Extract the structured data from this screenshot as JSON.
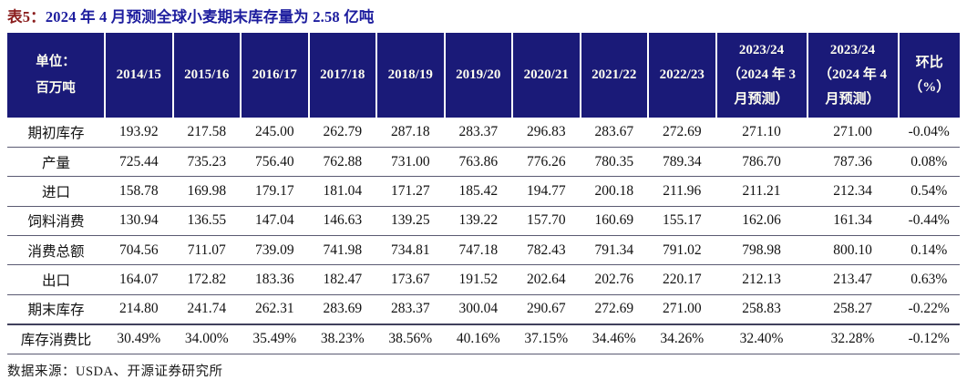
{
  "title": {
    "prefix": "表5：",
    "text": "2024 年 4 月预测全球小麦期末库存量为 2.58 亿吨"
  },
  "table": {
    "unit_label": "单位：\n百万吨",
    "columns": [
      "2014/15",
      "2015/16",
      "2016/17",
      "2017/18",
      "2018/19",
      "2019/20",
      "2020/21",
      "2021/22",
      "2022/23",
      "2023/24\n（2024 年 3\n月预测）",
      "2023/24\n（2024 年 4\n月预测）",
      "环比\n（%）"
    ],
    "rows": [
      {
        "label": "期初库存",
        "values": [
          "193.92",
          "217.58",
          "245.00",
          "262.79",
          "287.18",
          "283.37",
          "296.83",
          "283.67",
          "272.69",
          "271.10",
          "271.00",
          "-0.04%"
        ]
      },
      {
        "label": "产量",
        "values": [
          "725.44",
          "735.23",
          "756.40",
          "762.88",
          "731.00",
          "763.86",
          "776.26",
          "780.35",
          "789.34",
          "786.70",
          "787.36",
          "0.08%"
        ]
      },
      {
        "label": "进口",
        "values": [
          "158.78",
          "169.98",
          "179.17",
          "181.04",
          "171.27",
          "185.42",
          "194.77",
          "200.18",
          "211.96",
          "211.21",
          "212.34",
          "0.54%"
        ]
      },
      {
        "label": "饲料消费",
        "values": [
          "130.94",
          "136.55",
          "147.04",
          "146.63",
          "139.25",
          "139.22",
          "157.70",
          "160.69",
          "155.17",
          "162.06",
          "161.34",
          "-0.44%"
        ]
      },
      {
        "label": "消费总额",
        "values": [
          "704.56",
          "711.07",
          "739.09",
          "741.98",
          "734.81",
          "747.18",
          "782.43",
          "791.34",
          "791.02",
          "798.98",
          "800.10",
          "0.14%"
        ]
      },
      {
        "label": "出口",
        "values": [
          "164.07",
          "172.82",
          "183.36",
          "182.47",
          "173.67",
          "191.52",
          "202.64",
          "202.76",
          "220.17",
          "212.13",
          "213.47",
          "0.63%"
        ]
      },
      {
        "label": "期末库存",
        "values": [
          "214.80",
          "241.74",
          "262.31",
          "283.69",
          "283.37",
          "300.04",
          "290.67",
          "272.69",
          "271.00",
          "258.83",
          "258.27",
          "-0.22%"
        ]
      },
      {
        "label": "库存消费比",
        "values": [
          "30.49%",
          "34.00%",
          "35.49%",
          "38.23%",
          "38.56%",
          "40.16%",
          "37.15%",
          "34.46%",
          "34.26%",
          "32.40%",
          "32.28%",
          "-0.12%"
        ]
      }
    ]
  },
  "footer": {
    "source_text": "数据来源：USDA、开源证券研究所"
  },
  "colors": {
    "header_bg": "#1a1a78",
    "header_text": "#fffff0",
    "title_prefix": "#8b1e1e",
    "title_main": "#1d1d9e",
    "grid_line": "#5a5a72",
    "grid_line_heavy": "#40405c",
    "body_text": "#111111"
  }
}
